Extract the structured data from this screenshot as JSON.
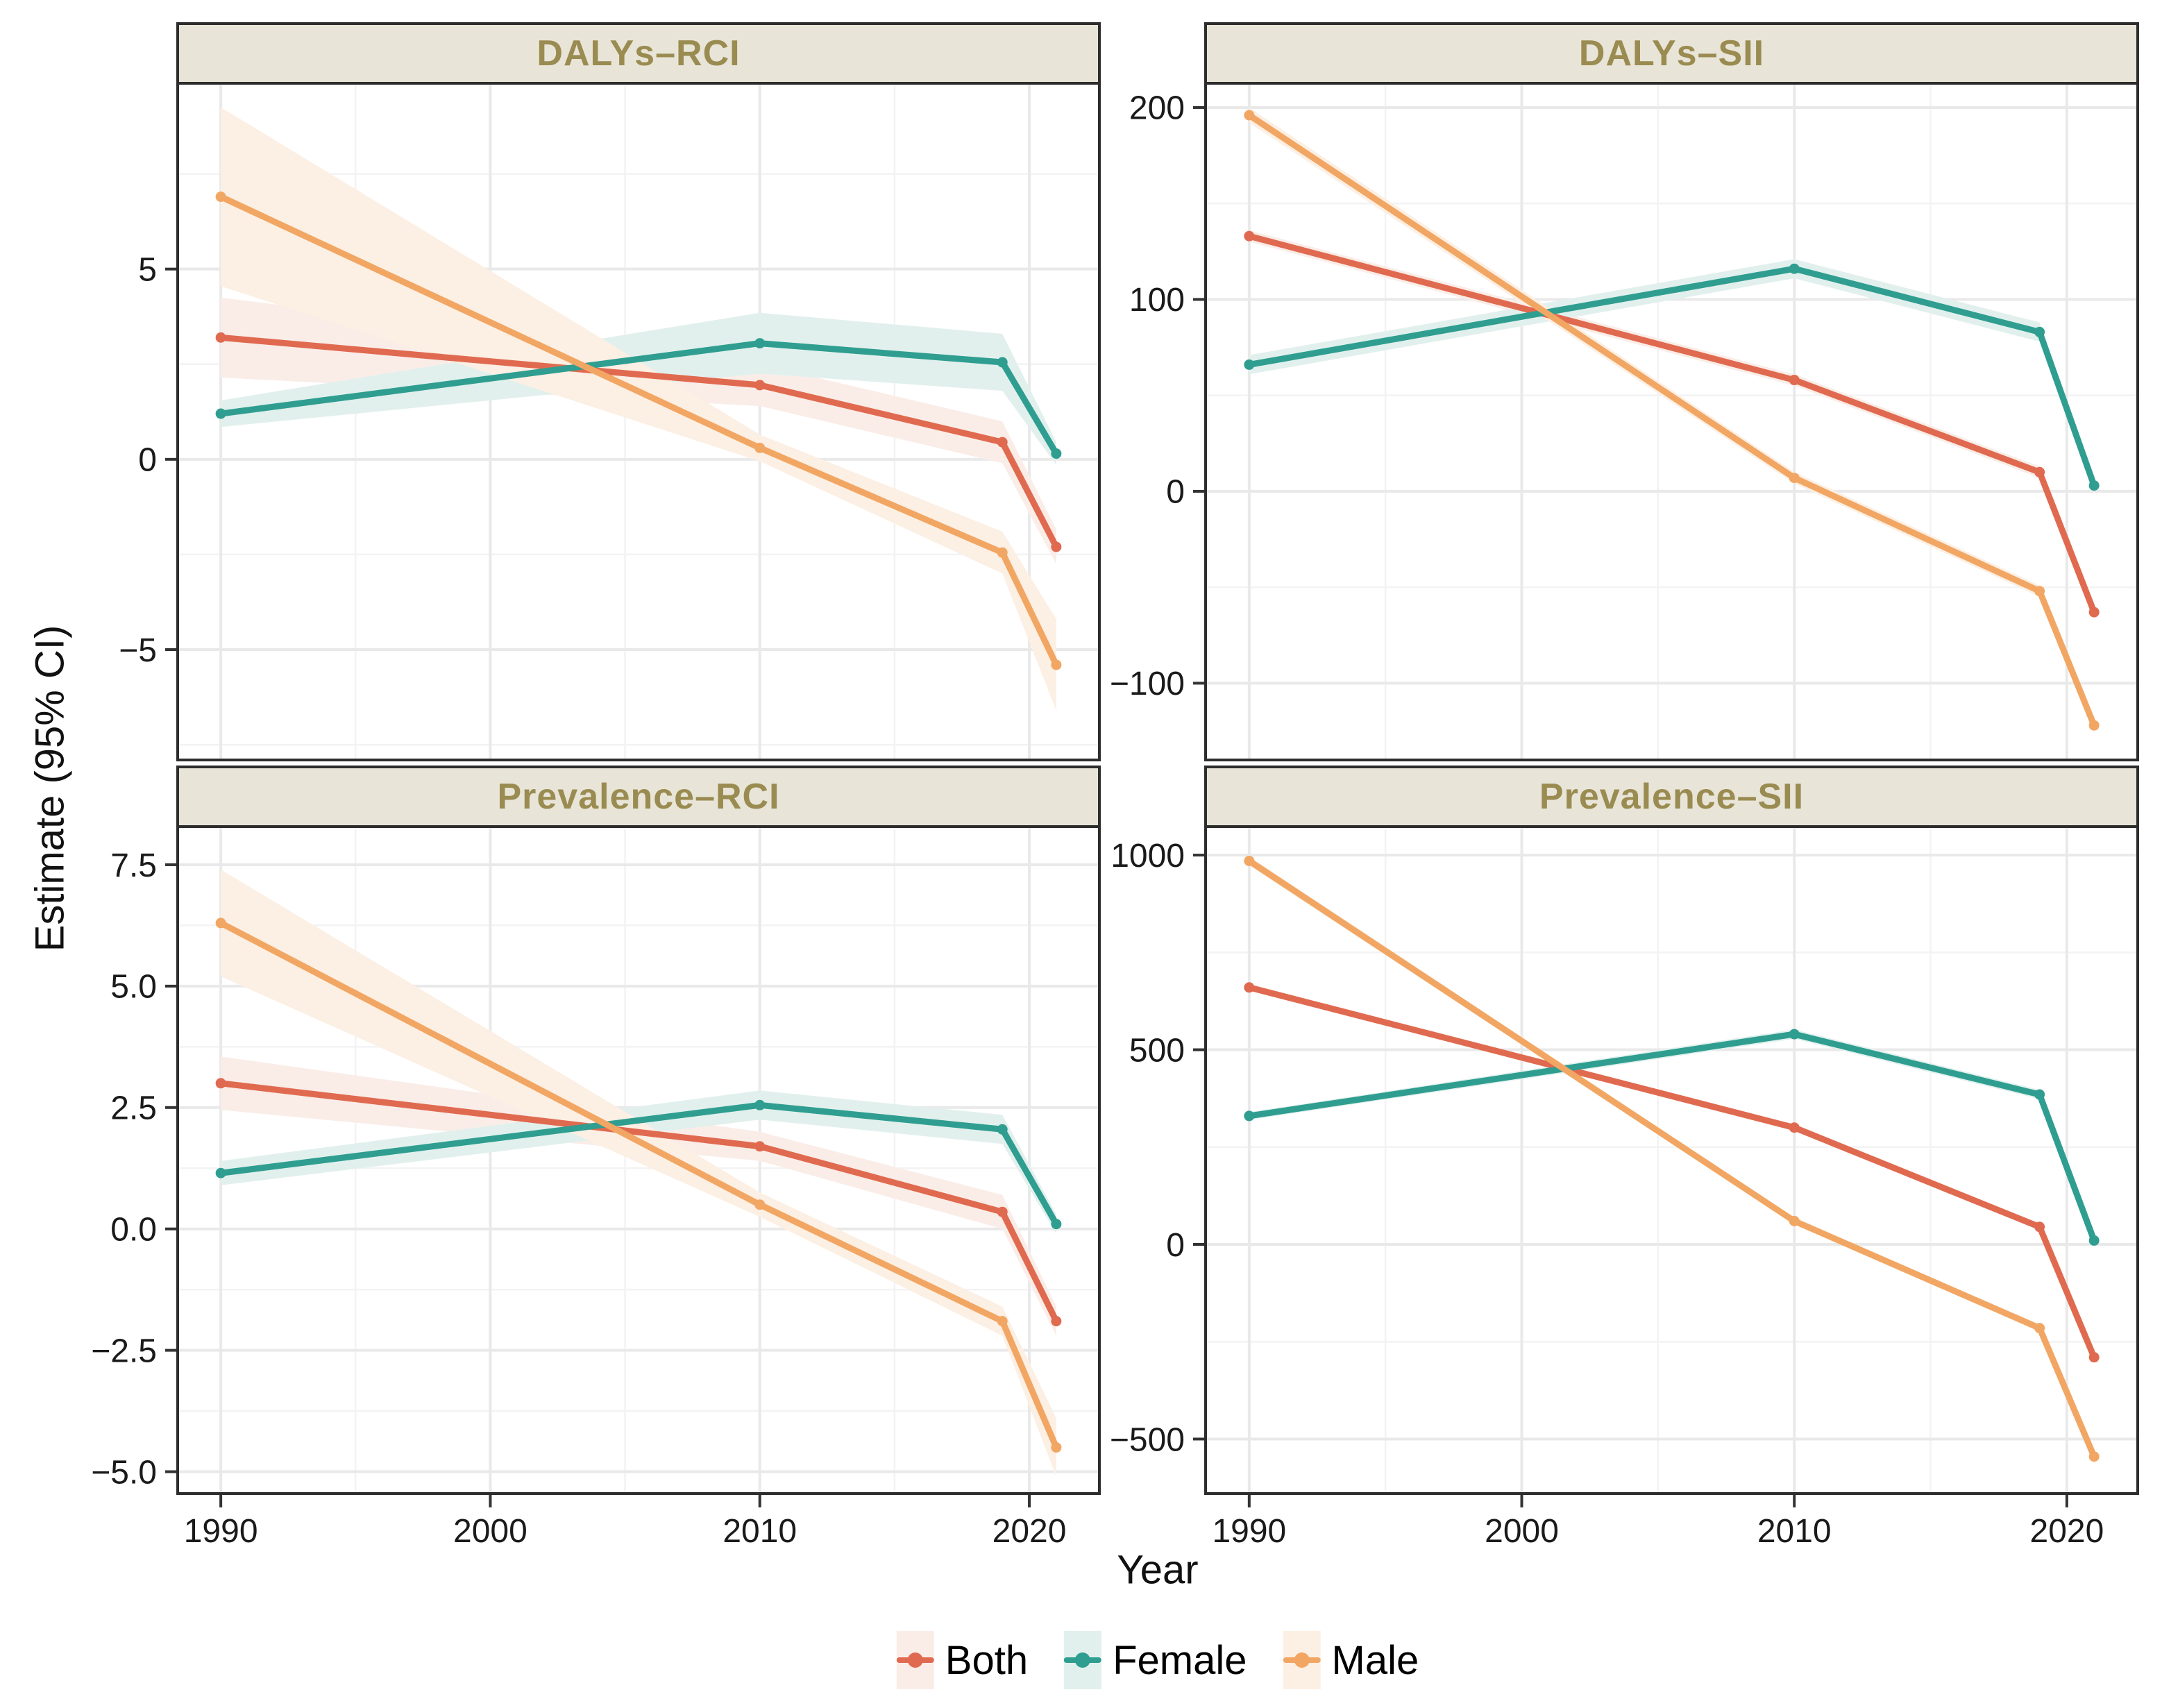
{
  "figure": {
    "y_axis_label": "Estimate (95% CI)",
    "x_axis_label": "Year",
    "colors": {
      "both": "#E06A50",
      "female": "#2F9E90",
      "male": "#F2A663",
      "both_ribbon": "#FAEDE8",
      "female_ribbon": "#E2F0ED",
      "male_ribbon": "#FCEFE3",
      "strip_bg": "#E8E5D8",
      "strip_text": "#9A8B51",
      "panel_border": "#2D2D2D",
      "grid_major": "#E9E9E9",
      "grid_minor": "#F3F3F3",
      "tick_mark": "#333333",
      "background": "#FFFFFF"
    },
    "legend": [
      {
        "label": "Both",
        "key": "both"
      },
      {
        "label": "Female",
        "key": "female"
      },
      {
        "label": "Male",
        "key": "male"
      }
    ]
  },
  "chart_data": {
    "type": "line",
    "x": [
      1990,
      2010,
      2019,
      2021
    ],
    "xlim": [
      1988.4,
      2022.6
    ],
    "x_ticks": [
      {
        "v": 1990,
        "label": "1990"
      },
      {
        "v": 2000,
        "label": "2000"
      },
      {
        "v": 2010,
        "label": "2010"
      },
      {
        "v": 2020,
        "label": "2020"
      }
    ],
    "x_minor": [
      1995,
      2005,
      2015
    ],
    "xlabel": "Year",
    "ylabel": "Estimate (95% CI)",
    "panels": [
      {
        "title": "DALYs–RCI",
        "row": 0,
        "col": 0,
        "ylim": [
          -7.9,
          9.9
        ],
        "y_ticks": [
          {
            "v": 5,
            "label": "5"
          },
          {
            "v": 0,
            "label": "0"
          },
          {
            "v": -5,
            "label": "−5"
          }
        ],
        "y_minor": [
          7.5,
          2.5,
          -2.5,
          -7.5
        ],
        "series": [
          {
            "name": "Both",
            "key": "both",
            "values": [
              3.2,
              1.95,
              0.45,
              -2.3
            ],
            "ci": [
              1.05,
              0.55,
              0.55,
              0.45
            ]
          },
          {
            "name": "Female",
            "key": "female",
            "values": [
              1.2,
              3.05,
              2.55,
              0.15
            ],
            "ci": [
              0.35,
              0.8,
              0.75,
              0.3
            ]
          },
          {
            "name": "Male",
            "key": "male",
            "values": [
              6.9,
              0.3,
              -2.45,
              -5.4
            ],
            "ci": [
              2.35,
              0.35,
              0.55,
              1.2
            ]
          }
        ]
      },
      {
        "title": "DALYs–SII",
        "row": 0,
        "col": 1,
        "ylim": [
          -140,
          213
        ],
        "y_ticks": [
          {
            "v": 200,
            "label": "200"
          },
          {
            "v": 100,
            "label": "100"
          },
          {
            "v": 0,
            "label": "0"
          },
          {
            "v": -100,
            "label": "−100"
          }
        ],
        "y_minor": [
          150,
          50,
          -50
        ],
        "series": [
          {
            "name": "Both",
            "key": "both",
            "values": [
              133,
              58,
              10,
              -63
            ],
            "ci": [
              3,
              3,
              3,
              3
            ]
          },
          {
            "name": "Female",
            "key": "female",
            "values": [
              66,
              116,
              83,
              3
            ],
            "ci": [
              5,
              5,
              5,
              4
            ]
          },
          {
            "name": "Male",
            "key": "male",
            "values": [
              196,
              7,
              -52,
              -122
            ],
            "ci": [
              4,
              3,
              3,
              4
            ]
          }
        ]
      },
      {
        "title": "Prevalence–RCI",
        "row": 1,
        "col": 0,
        "ylim": [
          -5.45,
          8.3
        ],
        "y_ticks": [
          {
            "v": 7.5,
            "label": "7.5"
          },
          {
            "v": 5,
            "label": "5.0"
          },
          {
            "v": 2.5,
            "label": "2.5"
          },
          {
            "v": 0,
            "label": "0.0"
          },
          {
            "v": -2.5,
            "label": "−2.5"
          },
          {
            "v": -5,
            "label": "−5.0"
          }
        ],
        "y_minor": [
          6.25,
          3.75,
          1.25,
          -1.25,
          -3.75
        ],
        "series": [
          {
            "name": "Both",
            "key": "both",
            "values": [
              3.0,
              1.7,
              0.35,
              -1.9
            ],
            "ci": [
              0.55,
              0.3,
              0.35,
              0.3
            ]
          },
          {
            "name": "Female",
            "key": "female",
            "values": [
              1.15,
              2.55,
              2.05,
              0.1
            ],
            "ci": [
              0.25,
              0.3,
              0.3,
              0.2
            ]
          },
          {
            "name": "Male",
            "key": "male",
            "values": [
              6.3,
              0.5,
              -1.9,
              -4.5
            ],
            "ci": [
              1.1,
              0.25,
              0.3,
              0.6
            ]
          }
        ]
      },
      {
        "title": "Prevalence–SII",
        "row": 1,
        "col": 1,
        "ylim": [
          -640,
          1075
        ],
        "y_ticks": [
          {
            "v": 1000,
            "label": "1000"
          },
          {
            "v": 500,
            "label": "500"
          },
          {
            "v": 0,
            "label": "0"
          },
          {
            "v": -500,
            "label": "−500"
          }
        ],
        "y_minor": [
          750,
          250,
          -250
        ],
        "series": [
          {
            "name": "Both",
            "key": "both",
            "values": [
              660,
              300,
              45,
              -290
            ],
            "ci": [
              8,
              8,
              8,
              8
            ]
          },
          {
            "name": "Female",
            "key": "female",
            "values": [
              330,
              540,
              385,
              10
            ],
            "ci": [
              10,
              12,
              12,
              8
            ]
          },
          {
            "name": "Male",
            "key": "male",
            "values": [
              985,
              60,
              -215,
              -545
            ],
            "ci": [
              12,
              8,
              8,
              12
            ]
          }
        ]
      }
    ]
  }
}
